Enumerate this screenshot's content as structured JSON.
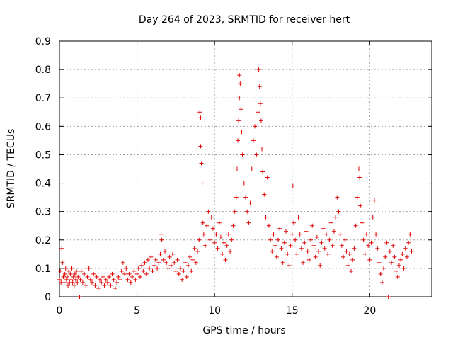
{
  "chart_data": {
    "type": "scatter",
    "title": "Day 264 of 2023, SRMTID for receiver hert",
    "xlabel": "GPS time / hours",
    "ylabel": "SRMTID / TECUs",
    "xlim": [
      0,
      24
    ],
    "ylim": [
      0,
      0.9
    ],
    "xticks": [
      0,
      5,
      10,
      15,
      20
    ],
    "xtick_labels": [
      "0",
      "5",
      "10",
      "15",
      "20"
    ],
    "yticks": [
      0,
      0.1,
      0.2,
      0.3,
      0.4,
      0.5,
      0.6,
      0.7,
      0.8,
      0.9
    ],
    "ytick_labels": [
      "0",
      "0.1",
      "0.2",
      "0.3",
      "0.4",
      "0.5",
      "0.6",
      "0.7",
      "0.8",
      "0.9"
    ],
    "grid": true,
    "marker": "plus",
    "marker_color": "#e00000",
    "series": [
      {
        "name": "SRMTID",
        "points": [
          [
            0.0,
            0.06
          ],
          [
            0.05,
            0.09
          ],
          [
            0.1,
            0.05
          ],
          [
            0.15,
            0.17
          ],
          [
            0.2,
            0.12
          ],
          [
            0.25,
            0.07
          ],
          [
            0.3,
            0.05
          ],
          [
            0.35,
            0.08
          ],
          [
            0.4,
            0.1
          ],
          [
            0.45,
            0.06
          ],
          [
            0.5,
            0.07
          ],
          [
            0.55,
            0.04
          ],
          [
            0.6,
            0.09
          ],
          [
            0.65,
            0.05
          ],
          [
            0.7,
            0.08
          ],
          [
            0.75,
            0.06
          ],
          [
            0.8,
            0.1
          ],
          [
            0.85,
            0.05
          ],
          [
            0.9,
            0.07
          ],
          [
            0.95,
            0.04
          ],
          [
            1.0,
            0.08
          ],
          [
            1.05,
            0.06
          ],
          [
            1.1,
            0.09
          ],
          [
            1.15,
            0.05
          ],
          [
            1.2,
            0.07
          ],
          [
            1.3,
            0.0
          ],
          [
            1.35,
            0.06
          ],
          [
            1.4,
            0.09
          ],
          [
            1.5,
            0.05
          ],
          [
            1.6,
            0.08
          ],
          [
            1.7,
            0.04
          ],
          [
            1.8,
            0.07
          ],
          [
            1.9,
            0.1
          ],
          [
            2.0,
            0.06
          ],
          [
            2.1,
            0.05
          ],
          [
            2.2,
            0.08
          ],
          [
            2.3,
            0.04
          ],
          [
            2.4,
            0.07
          ],
          [
            2.5,
            0.03
          ],
          [
            2.6,
            0.06
          ],
          [
            2.7,
            0.05
          ],
          [
            2.8,
            0.07
          ],
          [
            2.9,
            0.04
          ],
          [
            3.0,
            0.06
          ],
          [
            3.1,
            0.05
          ],
          [
            3.2,
            0.07
          ],
          [
            3.3,
            0.04
          ],
          [
            3.4,
            0.08
          ],
          [
            3.5,
            0.06
          ],
          [
            3.6,
            0.03
          ],
          [
            3.7,
            0.05
          ],
          [
            3.8,
            0.07
          ],
          [
            3.9,
            0.06
          ],
          [
            4.0,
            0.09
          ],
          [
            4.1,
            0.12
          ],
          [
            4.2,
            0.08
          ],
          [
            4.3,
            0.1
          ],
          [
            4.4,
            0.06
          ],
          [
            4.5,
            0.08
          ],
          [
            4.6,
            0.05
          ],
          [
            4.7,
            0.07
          ],
          [
            4.8,
            0.09
          ],
          [
            4.9,
            0.06
          ],
          [
            5.0,
            0.08
          ],
          [
            5.1,
            0.1
          ],
          [
            5.2,
            0.07
          ],
          [
            5.3,
            0.11
          ],
          [
            5.4,
            0.09
          ],
          [
            5.5,
            0.12
          ],
          [
            5.6,
            0.08
          ],
          [
            5.7,
            0.13
          ],
          [
            5.8,
            0.1
          ],
          [
            5.9,
            0.14
          ],
          [
            6.0,
            0.09
          ],
          [
            6.1,
            0.11
          ],
          [
            6.2,
            0.13
          ],
          [
            6.3,
            0.1
          ],
          [
            6.4,
            0.12
          ],
          [
            6.5,
            0.15
          ],
          [
            6.55,
            0.22
          ],
          [
            6.6,
            0.2
          ],
          [
            6.7,
            0.13
          ],
          [
            6.8,
            0.16
          ],
          [
            6.9,
            0.12
          ],
          [
            7.0,
            0.1
          ],
          [
            7.1,
            0.14
          ],
          [
            7.2,
            0.11
          ],
          [
            7.3,
            0.15
          ],
          [
            7.4,
            0.12
          ],
          [
            7.5,
            0.09
          ],
          [
            7.6,
            0.13
          ],
          [
            7.7,
            0.08
          ],
          [
            7.8,
            0.1
          ],
          [
            7.9,
            0.06
          ],
          [
            8.0,
            0.09
          ],
          [
            8.1,
            0.12
          ],
          [
            8.2,
            0.07
          ],
          [
            8.3,
            0.11
          ],
          [
            8.4,
            0.14
          ],
          [
            8.5,
            0.09
          ],
          [
            8.6,
            0.13
          ],
          [
            8.7,
            0.17
          ],
          [
            8.8,
            0.12
          ],
          [
            8.9,
            0.16
          ],
          [
            9.0,
            0.2
          ],
          [
            9.05,
            0.65
          ],
          [
            9.1,
            0.63
          ],
          [
            9.1,
            0.53
          ],
          [
            9.15,
            0.47
          ],
          [
            9.2,
            0.4
          ],
          [
            9.25,
            0.26
          ],
          [
            9.3,
            0.22
          ],
          [
            9.4,
            0.18
          ],
          [
            9.5,
            0.25
          ],
          [
            9.6,
            0.3
          ],
          [
            9.7,
            0.2
          ],
          [
            9.8,
            0.28
          ],
          [
            9.9,
            0.24
          ],
          [
            10.0,
            0.19
          ],
          [
            10.1,
            0.22
          ],
          [
            10.2,
            0.17
          ],
          [
            10.3,
            0.26
          ],
          [
            10.4,
            0.21
          ],
          [
            10.5,
            0.15
          ],
          [
            10.6,
            0.19
          ],
          [
            10.7,
            0.13
          ],
          [
            10.8,
            0.18
          ],
          [
            10.9,
            0.22
          ],
          [
            11.0,
            0.16
          ],
          [
            11.1,
            0.2
          ],
          [
            11.2,
            0.25
          ],
          [
            11.3,
            0.3
          ],
          [
            11.4,
            0.35
          ],
          [
            11.45,
            0.45
          ],
          [
            11.5,
            0.55
          ],
          [
            11.55,
            0.62
          ],
          [
            11.6,
            0.7
          ],
          [
            11.6,
            0.78
          ],
          [
            11.65,
            0.75
          ],
          [
            11.7,
            0.66
          ],
          [
            11.75,
            0.58
          ],
          [
            11.8,
            0.5
          ],
          [
            11.9,
            0.4
          ],
          [
            12.0,
            0.35
          ],
          [
            12.1,
            0.3
          ],
          [
            12.2,
            0.26
          ],
          [
            12.3,
            0.33
          ],
          [
            12.4,
            0.45
          ],
          [
            12.5,
            0.55
          ],
          [
            12.6,
            0.6
          ],
          [
            12.7,
            0.5
          ],
          [
            12.8,
            0.65
          ],
          [
            12.85,
            0.8
          ],
          [
            12.9,
            0.74
          ],
          [
            12.95,
            0.68
          ],
          [
            13.0,
            0.62
          ],
          [
            13.05,
            0.52
          ],
          [
            13.1,
            0.44
          ],
          [
            13.2,
            0.36
          ],
          [
            13.3,
            0.28
          ],
          [
            13.4,
            0.42
          ],
          [
            13.5,
            0.25
          ],
          [
            13.6,
            0.2
          ],
          [
            13.7,
            0.16
          ],
          [
            13.8,
            0.22
          ],
          [
            13.9,
            0.18
          ],
          [
            14.0,
            0.14
          ],
          [
            14.1,
            0.2
          ],
          [
            14.2,
            0.24
          ],
          [
            14.3,
            0.17
          ],
          [
            14.4,
            0.12
          ],
          [
            14.5,
            0.19
          ],
          [
            14.6,
            0.23
          ],
          [
            14.7,
            0.15
          ],
          [
            14.8,
            0.11
          ],
          [
            14.9,
            0.18
          ],
          [
            15.0,
            0.22
          ],
          [
            15.05,
            0.39
          ],
          [
            15.1,
            0.26
          ],
          [
            15.2,
            0.2
          ],
          [
            15.3,
            0.15
          ],
          [
            15.4,
            0.28
          ],
          [
            15.5,
            0.22
          ],
          [
            15.6,
            0.17
          ],
          [
            15.7,
            0.12
          ],
          [
            15.8,
            0.19
          ],
          [
            15.9,
            0.23
          ],
          [
            16.0,
            0.16
          ],
          [
            16.1,
            0.13
          ],
          [
            16.2,
            0.2
          ],
          [
            16.3,
            0.25
          ],
          [
            16.4,
            0.18
          ],
          [
            16.5,
            0.14
          ],
          [
            16.6,
            0.21
          ],
          [
            16.7,
            0.16
          ],
          [
            16.8,
            0.11
          ],
          [
            16.9,
            0.19
          ],
          [
            17.0,
            0.24
          ],
          [
            17.1,
            0.17
          ],
          [
            17.2,
            0.22
          ],
          [
            17.3,
            0.15
          ],
          [
            17.4,
            0.2
          ],
          [
            17.5,
            0.26
          ],
          [
            17.6,
            0.18
          ],
          [
            17.7,
            0.23
          ],
          [
            17.8,
            0.28
          ],
          [
            17.9,
            0.35
          ],
          [
            18.0,
            0.3
          ],
          [
            18.1,
            0.22
          ],
          [
            18.2,
            0.18
          ],
          [
            18.3,
            0.14
          ],
          [
            18.4,
            0.2
          ],
          [
            18.5,
            0.16
          ],
          [
            18.6,
            0.11
          ],
          [
            18.7,
            0.15
          ],
          [
            18.8,
            0.09
          ],
          [
            18.9,
            0.13
          ],
          [
            19.0,
            0.17
          ],
          [
            19.1,
            0.25
          ],
          [
            19.2,
            0.35
          ],
          [
            19.3,
            0.45
          ],
          [
            19.35,
            0.42
          ],
          [
            19.4,
            0.32
          ],
          [
            19.5,
            0.26
          ],
          [
            19.6,
            0.2
          ],
          [
            19.7,
            0.15
          ],
          [
            19.8,
            0.22
          ],
          [
            19.9,
            0.18
          ],
          [
            20.0,
            0.13
          ],
          [
            20.1,
            0.19
          ],
          [
            20.2,
            0.28
          ],
          [
            20.3,
            0.34
          ],
          [
            20.4,
            0.22
          ],
          [
            20.5,
            0.17
          ],
          [
            20.6,
            0.12
          ],
          [
            20.7,
            0.08
          ],
          [
            20.8,
            0.05
          ],
          [
            20.9,
            0.1
          ],
          [
            21.0,
            0.14
          ],
          [
            21.1,
            0.19
          ],
          [
            21.2,
            0.0
          ],
          [
            21.3,
            0.16
          ],
          [
            21.4,
            0.12
          ],
          [
            21.5,
            0.18
          ],
          [
            21.6,
            0.14
          ],
          [
            21.7,
            0.09
          ],
          [
            21.8,
            0.07
          ],
          [
            21.9,
            0.11
          ],
          [
            22.0,
            0.13
          ],
          [
            22.1,
            0.15
          ],
          [
            22.2,
            0.1
          ],
          [
            22.3,
            0.17
          ],
          [
            22.4,
            0.14
          ],
          [
            22.5,
            0.19
          ],
          [
            22.6,
            0.22
          ],
          [
            22.7,
            0.16
          ]
        ]
      }
    ]
  }
}
